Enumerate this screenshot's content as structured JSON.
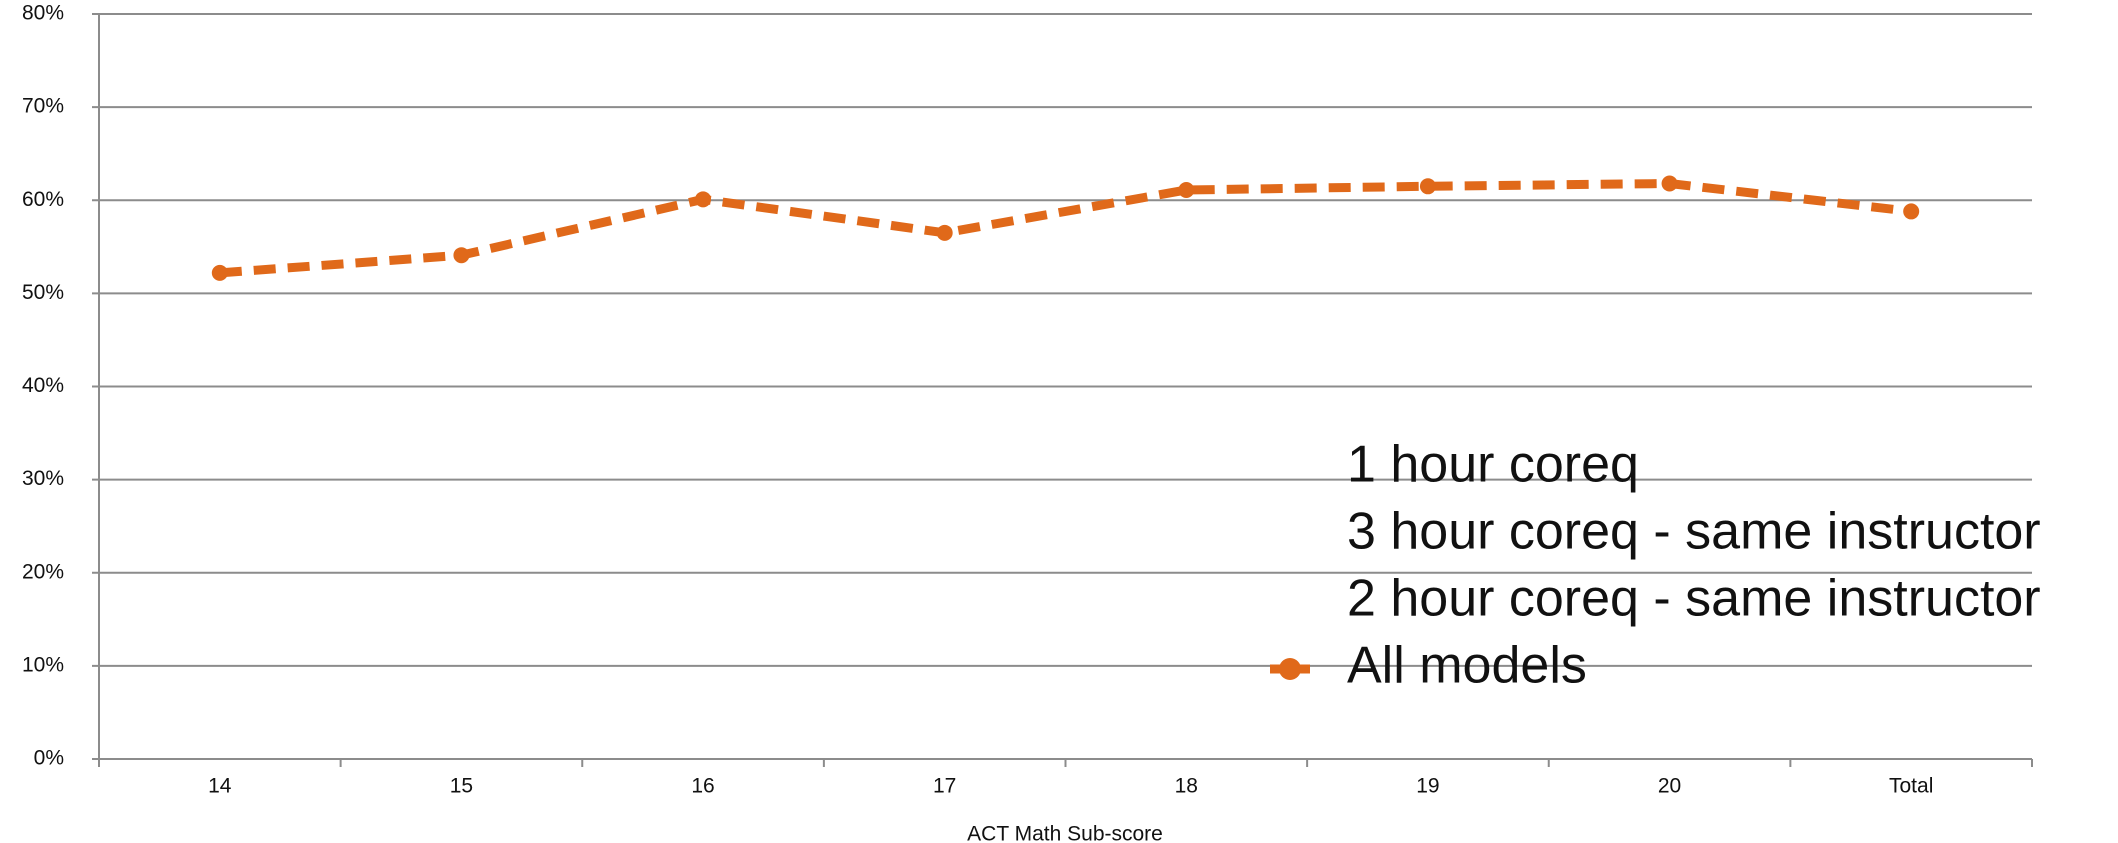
{
  "chart_data": {
    "type": "line",
    "xlabel": "ACT Math Sub-score",
    "categories": [
      "14",
      "15",
      "16",
      "17",
      "18",
      "19",
      "20",
      "Total"
    ],
    "series": [
      {
        "name": "1 hour coreq",
        "values": [
          null,
          null,
          null,
          null,
          null,
          null,
          null,
          null
        ]
      },
      {
        "name": "3 hour coreq - same instructor",
        "values": [
          null,
          null,
          null,
          null,
          null,
          null,
          null,
          null
        ]
      },
      {
        "name": "2 hour coreq - same instructor",
        "values": [
          null,
          null,
          null,
          null,
          null,
          null,
          null,
          null
        ]
      },
      {
        "name": "All models",
        "color": "#e0691a",
        "values": [
          52.2,
          54.1,
          60.1,
          56.5,
          61.1,
          61.5,
          61.8,
          58.8
        ]
      }
    ],
    "ylim": [
      0,
      80
    ],
    "yticks": [
      {
        "value": 0,
        "label": "0%"
      },
      {
        "value": 10,
        "label": "10%"
      },
      {
        "value": 20,
        "label": "20%"
      },
      {
        "value": 30,
        "label": "30%"
      },
      {
        "value": 40,
        "label": "40%"
      },
      {
        "value": 50,
        "label": "50%"
      },
      {
        "value": 60,
        "label": "60%"
      },
      {
        "value": 70,
        "label": "70%"
      },
      {
        "value": 80,
        "label": "80%"
      }
    ],
    "grid": true,
    "legend": "right"
  }
}
